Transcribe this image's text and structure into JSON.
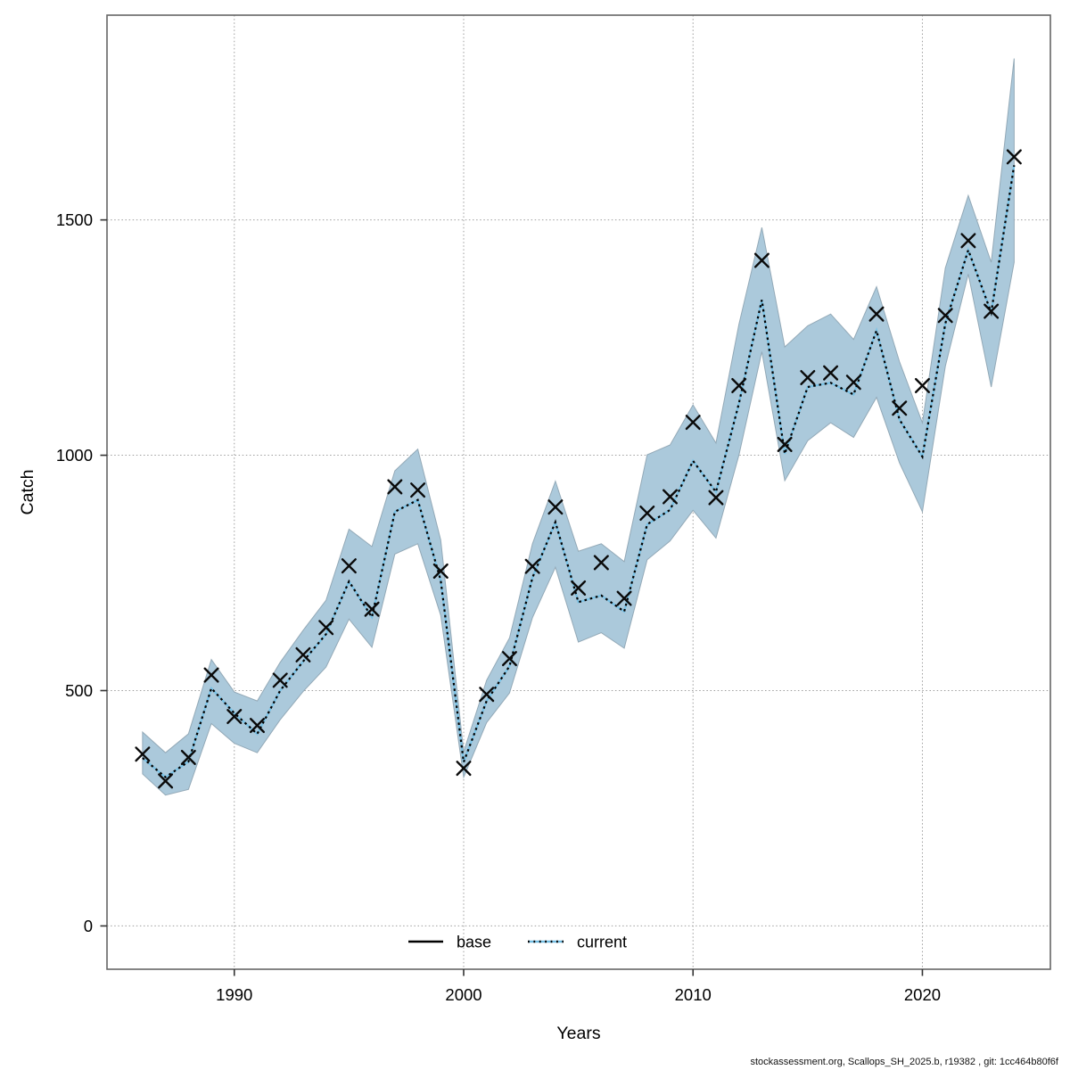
{
  "figure": {
    "background": "#ffffff"
  },
  "axes": {
    "x_label": "Years",
    "y_label": "Catch",
    "x_ticks": [
      1990,
      2000,
      2010,
      2020
    ],
    "y_ticks": [
      0,
      500,
      1000,
      1500
    ]
  },
  "legend": {
    "items": [
      {
        "label": "base",
        "style": "solid",
        "color": "#000000"
      },
      {
        "label": "current",
        "style": "dotted",
        "color": "#74bde2"
      }
    ]
  },
  "footer": {
    "text": "stockassessment.org, Scallops_SH_2025.b, r19382 , git: 1cc464b80f6f"
  },
  "colors": {
    "band_fill": "#abc9db",
    "band_edge": "#93a9b7",
    "current_under": "#79c2e6",
    "current_dash": "#000000",
    "marker": "#0a0a0a",
    "grid": "#9e9e9e",
    "box": "#666666",
    "tick": "#333333",
    "text": "#000000"
  },
  "chart_data": {
    "type": "line",
    "title": "",
    "xlabel": "Years",
    "ylabel": "Catch",
    "xlim": [
      1984.45,
      2025.58
    ],
    "ylim": [
      -92,
      1935
    ],
    "grid": "dotted",
    "legend_position": "bottom-center-inside",
    "x": [
      1986,
      1987,
      1988,
      1989,
      1990,
      1991,
      1992,
      1993,
      1994,
      1995,
      1996,
      1997,
      1998,
      1999,
      2000,
      2001,
      2002,
      2003,
      2004,
      2005,
      2006,
      2007,
      2008,
      2009,
      2010,
      2011,
      2012,
      2013,
      2014,
      2015,
      2016,
      2017,
      2018,
      2019,
      2020,
      2021,
      2022,
      2023,
      2024
    ],
    "series": [
      {
        "name": "base",
        "style": "x-markers",
        "values": [
          365,
          308,
          358,
          533,
          445,
          426,
          522,
          576,
          634,
          765,
          673,
          933,
          926,
          754,
          335,
          492,
          568,
          764,
          890,
          718,
          772,
          696,
          877,
          912,
          1070,
          910,
          1148,
          1414,
          1023,
          1165,
          1175,
          1155,
          1300,
          1100,
          1148,
          1297,
          1456,
          1306,
          1634
        ]
      },
      {
        "name": "current",
        "style": "dotted-line-with-band",
        "values": [
          357,
          316,
          349,
          505,
          452,
          408,
          500,
          562,
          620,
          732,
          656,
          880,
          905,
          734,
          348,
          478,
          552,
          740,
          858,
          688,
          702,
          668,
          853,
          884,
          988,
          922,
          1110,
          1330,
          1003,
          1145,
          1154,
          1129,
          1265,
          1076,
          997,
          1280,
          1436,
          1303,
          1616
        ],
        "lower": [
          323,
          278,
          290,
          430,
          388,
          368,
          438,
          498,
          550,
          652,
          592,
          790,
          812,
          660,
          316,
          432,
          495,
          655,
          762,
          603,
          623,
          590,
          778,
          818,
          883,
          824,
          1000,
          1220,
          946,
          1031,
          1069,
          1038,
          1123,
          984,
          880,
          1189,
          1385,
          1145,
          1410
        ],
        "upper": [
          412,
          368,
          408,
          566,
          497,
          478,
          560,
          628,
          692,
          843,
          806,
          967,
          1013,
          820,
          370,
          522,
          612,
          812,
          945,
          796,
          812,
          774,
          1001,
          1022,
          1107,
          1026,
          1278,
          1484,
          1230,
          1275,
          1300,
          1246,
          1358,
          1199,
          1069,
          1398,
          1552,
          1410,
          1843
        ]
      }
    ]
  }
}
